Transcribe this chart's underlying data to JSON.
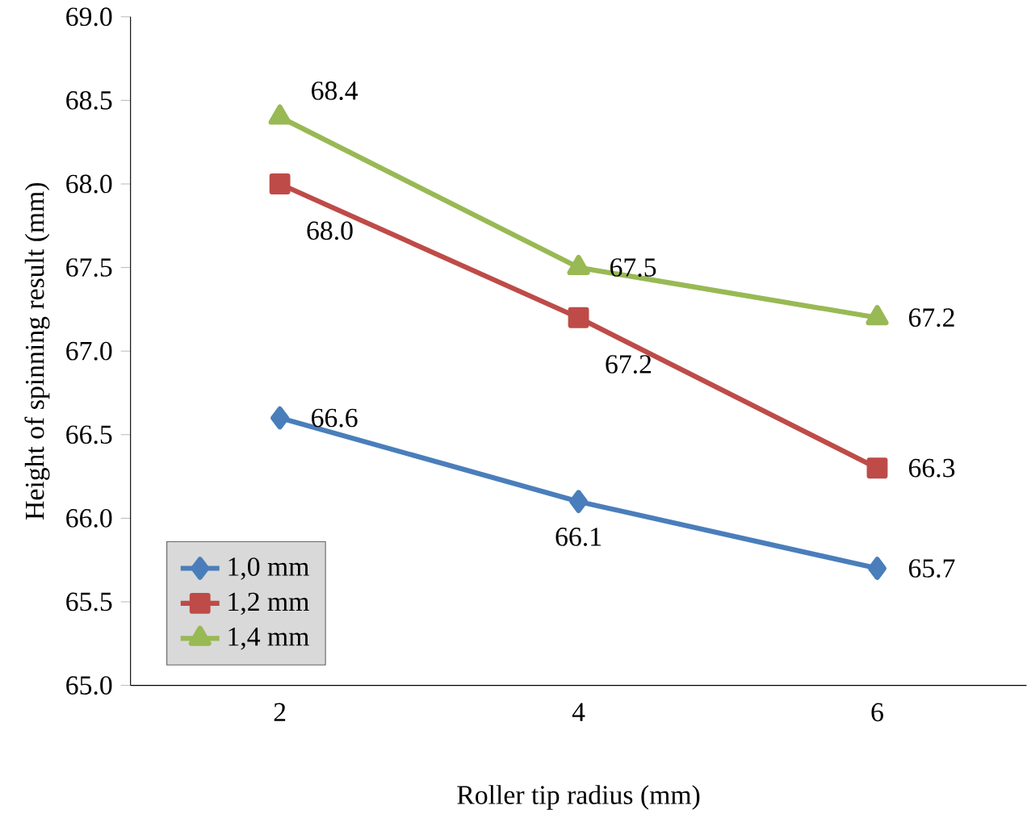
{
  "chart_data": {
    "type": "line",
    "xlabel": "Roller tip radius  (mm)",
    "ylabel": "Height of spinning result (mm)",
    "categories": [
      "2",
      "4",
      "6"
    ],
    "series": [
      {
        "name": "1,0 mm",
        "color": "#4a7ebb",
        "marker": "diamond",
        "values": [
          66.6,
          66.1,
          65.7
        ],
        "value_labels": [
          "66.6",
          "66.1",
          "65.7"
        ]
      },
      {
        "name": "1,2 mm",
        "color": "#be4b48",
        "marker": "square",
        "values": [
          68.0,
          67.2,
          66.3
        ],
        "value_labels": [
          "68.0",
          "67.2",
          "66.3"
        ]
      },
      {
        "name": "1,4 mm",
        "color": "#98b954",
        "marker": "triangle",
        "values": [
          68.4,
          67.5,
          67.2
        ],
        "value_labels": [
          "68.4",
          "67.5",
          "67.2"
        ]
      }
    ],
    "ylim": [
      65,
      69
    ],
    "yticks": [
      {
        "value": 65,
        "label": "65.0"
      },
      {
        "value": 65.5,
        "label": "65.5"
      },
      {
        "value": 66,
        "label": "66.0"
      },
      {
        "value": 66.5,
        "label": "66.5"
      },
      {
        "value": 67,
        "label": "67.0"
      },
      {
        "value": 67.5,
        "label": "67.5"
      },
      {
        "value": 68,
        "label": "68.0"
      },
      {
        "value": 68.5,
        "label": "68.5"
      },
      {
        "value": 69,
        "label": "69.0"
      }
    ],
    "grid": false,
    "legend": "bottom left",
    "line_style": "solid"
  }
}
